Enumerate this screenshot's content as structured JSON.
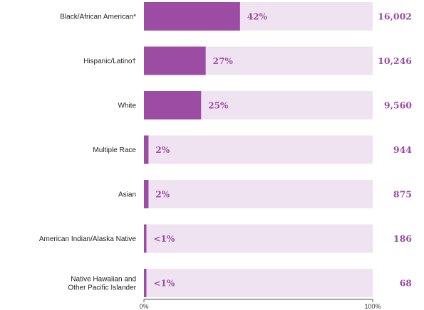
{
  "colors": {
    "bar_fill": "#9c4ca3",
    "bar_track": "#f0e3f1",
    "value_text": "#9c4ca3",
    "axis_line": "#555555"
  },
  "chart_data": {
    "type": "bar",
    "orientation": "horizontal",
    "categories": [
      [
        "Black/African American*"
      ],
      [
        "Hispanic/Latino†"
      ],
      [
        "White"
      ],
      [
        "Multiple Race"
      ],
      [
        "Asian"
      ],
      [
        "American Indian/Alaska Native"
      ],
      [
        "Native Hawaiian and",
        "Other Pacific Islander"
      ]
    ],
    "series": [
      {
        "values": [
          42,
          27,
          25,
          2,
          2,
          1,
          1
        ],
        "value_labels": [
          "42%",
          "27%",
          "25%",
          "2%",
          "2%",
          "<1%",
          "<1%"
        ]
      }
    ],
    "counts": [
      "16,002",
      "10,246",
      "9,560",
      "944",
      "875",
      "186",
      "68"
    ],
    "xlim": [
      0,
      100
    ],
    "x_ticks": [
      "0%",
      "100%"
    ],
    "grid": false,
    "legend": "none"
  }
}
